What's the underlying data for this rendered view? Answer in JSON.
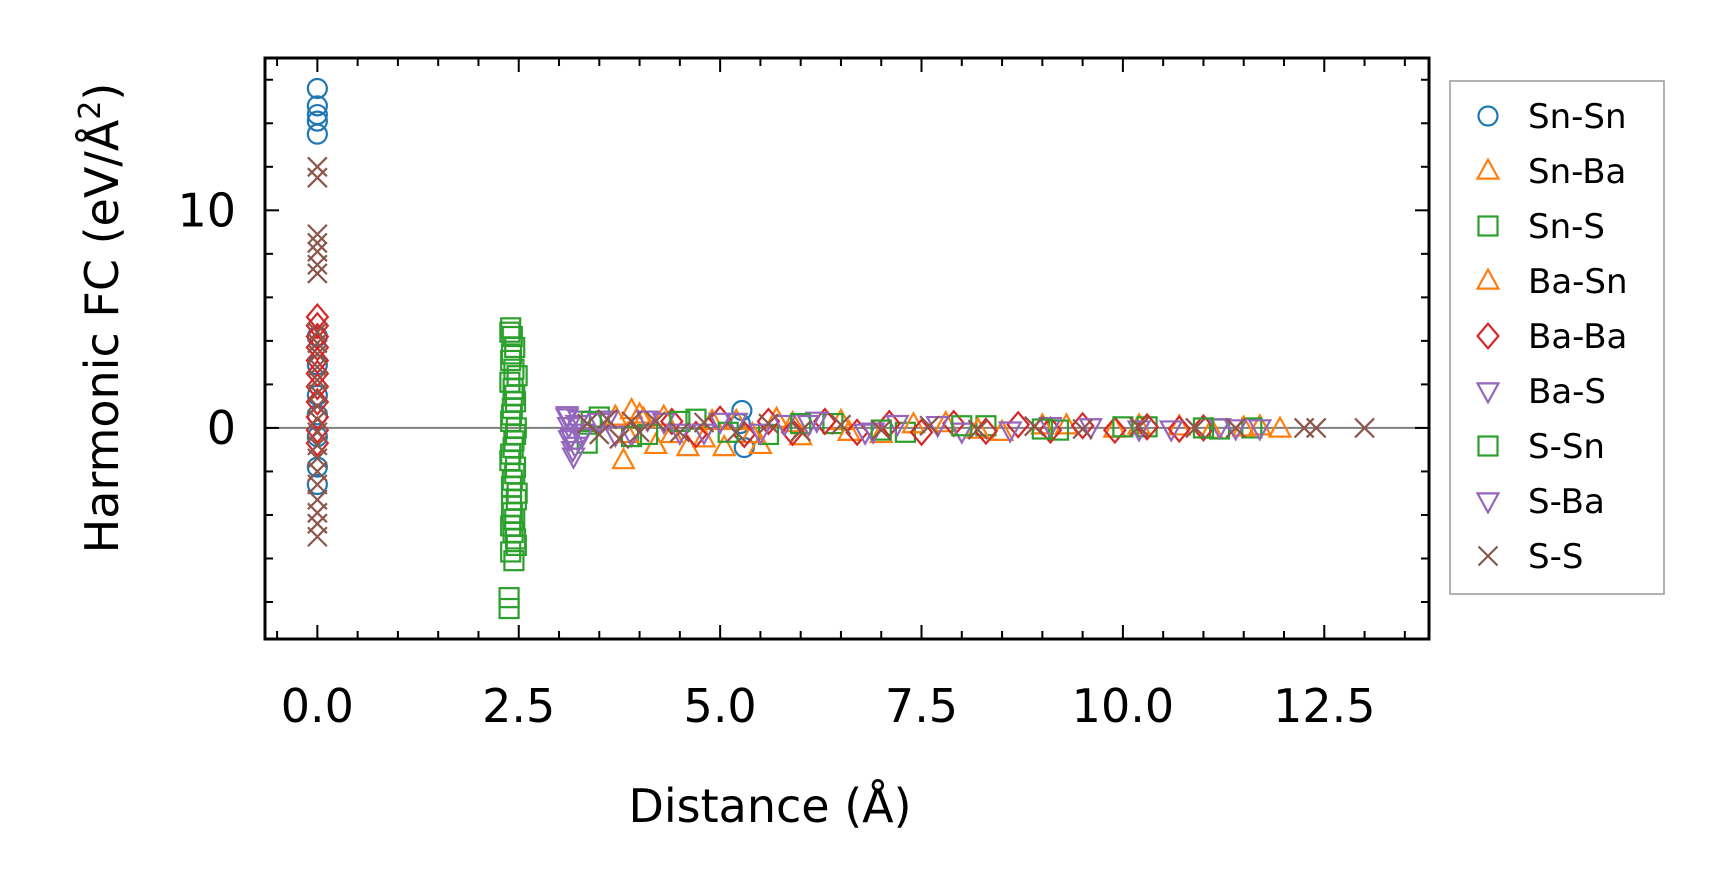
{
  "chart_data": {
    "type": "scatter",
    "title": "",
    "xlabel": "Distance (Å)",
    "ylabel_main": "Harmonic FC (eV/Å",
    "ylabel_sup": "2",
    "ylabel_end": ")",
    "xlim": [
      -0.65,
      13.8
    ],
    "ylim": [
      -9.7,
      17.0
    ],
    "xticks": [
      0.0,
      2.5,
      5.0,
      7.5,
      10.0,
      12.5
    ],
    "xtick_labels": [
      "0.0",
      "2.5",
      "5.0",
      "7.5",
      "10.0",
      "12.5"
    ],
    "yticks": [
      0,
      10
    ],
    "ytick_labels": [
      "0",
      "10"
    ],
    "x_minor_step": 0.5,
    "y_minor_step": 2,
    "zero_line": true,
    "grid": false,
    "legend_position": "outside-right",
    "series": [
      {
        "name": "Sn-Sn",
        "marker": "circle",
        "color": "#1f77b4",
        "points": [
          [
            0.0,
            15.6
          ],
          [
            0.0,
            14.8
          ],
          [
            0.0,
            14.4
          ],
          [
            0.0,
            14.1
          ],
          [
            0.0,
            13.5
          ],
          [
            0.0,
            4.2
          ],
          [
            0.0,
            2.9
          ],
          [
            0.0,
            1.5
          ],
          [
            0.0,
            0.6
          ],
          [
            0.0,
            -0.4
          ],
          [
            0.0,
            -1.8
          ],
          [
            0.0,
            -2.6
          ],
          [
            5.27,
            0.8
          ],
          [
            5.3,
            -0.9
          ],
          [
            5.25,
            0.2
          ]
        ]
      },
      {
        "name": "Sn-Ba",
        "marker": "triangle-up",
        "color": "#ff7f0e",
        "points": [
          [
            3.8,
            -1.5
          ],
          [
            3.9,
            0.8
          ],
          [
            4.0,
            0.6
          ],
          [
            4.2,
            -0.8
          ],
          [
            4.3,
            0.5
          ],
          [
            4.6,
            -0.9
          ],
          [
            4.8,
            -0.5
          ],
          [
            5.05,
            -0.9
          ],
          [
            5.2,
            0.3
          ],
          [
            5.5,
            -0.8
          ],
          [
            5.7,
            0.4
          ],
          [
            6.0,
            -0.4
          ],
          [
            6.5,
            0.3
          ],
          [
            7.0,
            -0.3
          ],
          [
            7.8,
            0.2
          ],
          [
            8.5,
            -0.2
          ],
          [
            9.3,
            0.1
          ],
          [
            10.2,
            0.1
          ],
          [
            11.1,
            -0.1
          ],
          [
            11.7,
            0.05
          ],
          [
            11.95,
            -0.05
          ]
        ]
      },
      {
        "name": "Sn-S",
        "marker": "square",
        "color": "#2ca02c",
        "points": [
          [
            2.4,
            4.6
          ],
          [
            2.42,
            4.2
          ],
          [
            2.45,
            3.7
          ],
          [
            2.4,
            3.1
          ],
          [
            2.48,
            2.4
          ],
          [
            2.43,
            1.8
          ],
          [
            2.46,
            1.2
          ],
          [
            2.41,
            0.6
          ],
          [
            2.47,
            0.0
          ],
          [
            2.44,
            -0.6
          ],
          [
            2.4,
            -1.2
          ],
          [
            2.46,
            -1.8
          ],
          [
            2.42,
            -2.4
          ],
          [
            2.48,
            -3.0
          ],
          [
            2.41,
            -3.6
          ],
          [
            2.45,
            -4.2
          ],
          [
            2.43,
            -4.8
          ],
          [
            2.47,
            -5.4
          ],
          [
            2.4,
            -5.7
          ],
          [
            2.44,
            -6.1
          ],
          [
            2.38,
            -7.8
          ],
          [
            2.38,
            -8.3
          ],
          [
            3.35,
            -0.7
          ],
          [
            3.5,
            0.5
          ],
          [
            4.1,
            -0.3
          ],
          [
            4.7,
            0.4
          ],
          [
            5.6,
            -0.3
          ],
          [
            6.4,
            0.2
          ],
          [
            7.3,
            -0.2
          ],
          [
            8.3,
            0.1
          ],
          [
            9.2,
            -0.1
          ],
          [
            10.3,
            0.05
          ],
          [
            11.2,
            -0.05
          ],
          [
            11.6,
            0.0
          ]
        ]
      },
      {
        "name": "Ba-Sn",
        "marker": "triangle-up",
        "color": "#ff7f0e",
        "points": [
          [
            3.7,
            0.5
          ],
          [
            3.85,
            -0.3
          ],
          [
            4.05,
            0.4
          ],
          [
            4.4,
            -0.3
          ],
          [
            4.9,
            0.3
          ],
          [
            5.4,
            -0.3
          ],
          [
            5.9,
            0.2
          ],
          [
            6.6,
            -0.2
          ],
          [
            7.4,
            0.15
          ],
          [
            8.2,
            -0.1
          ],
          [
            9.0,
            0.1
          ],
          [
            9.9,
            -0.05
          ],
          [
            10.7,
            0.05
          ],
          [
            11.5,
            0.0
          ]
        ]
      },
      {
        "name": "Ba-Ba",
        "marker": "diamond",
        "color": "#d62728",
        "points": [
          [
            0.0,
            5.1
          ],
          [
            0.0,
            4.7
          ],
          [
            0.0,
            4.2
          ],
          [
            0.0,
            3.7
          ],
          [
            0.0,
            3.1
          ],
          [
            0.0,
            2.5
          ],
          [
            0.0,
            1.9
          ],
          [
            0.0,
            1.2
          ],
          [
            0.0,
            0.5
          ],
          [
            0.0,
            -0.1
          ],
          [
            0.0,
            -0.7
          ],
          [
            4.4,
            0.3
          ],
          [
            4.7,
            -0.3
          ],
          [
            5.0,
            0.4
          ],
          [
            5.3,
            -0.3
          ],
          [
            5.6,
            0.3
          ],
          [
            5.9,
            -0.2
          ],
          [
            6.3,
            0.3
          ],
          [
            6.7,
            -0.2
          ],
          [
            7.1,
            0.2
          ],
          [
            7.5,
            -0.2
          ],
          [
            7.9,
            0.2
          ],
          [
            8.3,
            -0.15
          ],
          [
            8.7,
            0.15
          ],
          [
            9.1,
            -0.1
          ],
          [
            9.5,
            0.1
          ],
          [
            9.9,
            -0.1
          ],
          [
            10.3,
            0.05
          ],
          [
            10.7,
            -0.05
          ],
          [
            11.0,
            0.0
          ]
        ]
      },
      {
        "name": "Ba-S",
        "marker": "triangle-down",
        "color": "#9467bd",
        "points": [
          [
            3.1,
            0.6
          ],
          [
            3.12,
            0.1
          ],
          [
            3.15,
            -0.4
          ],
          [
            3.2,
            -0.8
          ],
          [
            3.18,
            -1.3
          ],
          [
            3.25,
            0.4
          ],
          [
            3.3,
            -0.2
          ],
          [
            3.6,
            0.4
          ],
          [
            3.9,
            -0.3
          ],
          [
            4.3,
            0.3
          ],
          [
            4.8,
            -0.2
          ],
          [
            5.2,
            0.3
          ],
          [
            5.8,
            0.2
          ],
          [
            6.2,
            0.35
          ],
          [
            6.8,
            -0.2
          ],
          [
            7.2,
            0.2
          ],
          [
            8.0,
            -0.15
          ],
          [
            9.1,
            0.1
          ],
          [
            10.2,
            -0.05
          ],
          [
            11.2,
            0.05
          ],
          [
            11.7,
            0.0
          ]
        ]
      },
      {
        "name": "S-Sn",
        "marker": "square",
        "color": "#2ca02c",
        "points": [
          [
            2.39,
            4.4
          ],
          [
            2.41,
            3.4
          ],
          [
            2.44,
            2.7
          ],
          [
            2.39,
            2.1
          ],
          [
            2.45,
            1.5
          ],
          [
            2.42,
            0.9
          ],
          [
            2.4,
            0.3
          ],
          [
            2.46,
            -0.3
          ],
          [
            2.43,
            -0.9
          ],
          [
            2.39,
            -1.5
          ],
          [
            2.45,
            -2.1
          ],
          [
            2.41,
            -2.7
          ],
          [
            2.47,
            -3.3
          ],
          [
            2.42,
            -3.9
          ],
          [
            2.4,
            -4.5
          ],
          [
            2.46,
            -5.1
          ],
          [
            3.4,
            0.3
          ],
          [
            3.9,
            -0.4
          ],
          [
            4.5,
            0.3
          ],
          [
            5.1,
            -0.2
          ],
          [
            6.0,
            0.2
          ],
          [
            7.0,
            -0.1
          ],
          [
            8.0,
            0.1
          ],
          [
            9.0,
            -0.05
          ],
          [
            10.0,
            0.05
          ],
          [
            11.0,
            0.0
          ]
        ]
      },
      {
        "name": "S-Ba",
        "marker": "triangle-down",
        "color": "#9467bd",
        "points": [
          [
            3.1,
            0.5
          ],
          [
            3.13,
            -0.5
          ],
          [
            3.17,
            -1.0
          ],
          [
            3.22,
            0.2
          ],
          [
            3.28,
            -0.4
          ],
          [
            3.5,
            0.3
          ],
          [
            3.7,
            -0.3
          ],
          [
            4.1,
            0.4
          ],
          [
            4.5,
            -0.2
          ],
          [
            5.0,
            0.3
          ],
          [
            5.5,
            -0.2
          ],
          [
            6.1,
            0.2
          ],
          [
            6.9,
            -0.15
          ],
          [
            7.7,
            0.15
          ],
          [
            8.6,
            -0.1
          ],
          [
            9.6,
            0.05
          ],
          [
            10.6,
            -0.05
          ],
          [
            11.4,
            0.0
          ]
        ]
      },
      {
        "name": "S-S",
        "marker": "x",
        "color": "#8c564b",
        "points": [
          [
            0.0,
            12.0
          ],
          [
            0.0,
            11.5
          ],
          [
            0.0,
            8.9
          ],
          [
            0.0,
            8.5
          ],
          [
            0.0,
            8.1
          ],
          [
            0.0,
            7.5
          ],
          [
            0.0,
            7.1
          ],
          [
            0.0,
            4.4
          ],
          [
            0.0,
            3.9
          ],
          [
            0.0,
            3.4
          ],
          [
            0.0,
            2.8
          ],
          [
            0.0,
            2.2
          ],
          [
            0.0,
            1.6
          ],
          [
            0.0,
            1.0
          ],
          [
            0.0,
            0.4
          ],
          [
            0.0,
            -0.2
          ],
          [
            0.0,
            -0.8
          ],
          [
            0.0,
            -1.4
          ],
          [
            0.0,
            -2.0
          ],
          [
            0.0,
            -2.6
          ],
          [
            0.0,
            -3.3
          ],
          [
            0.0,
            -3.9
          ],
          [
            0.0,
            -4.4
          ],
          [
            0.0,
            -5.0
          ],
          [
            3.35,
            0.2
          ],
          [
            3.5,
            -0.3
          ],
          [
            3.6,
            0.4
          ],
          [
            3.75,
            -0.5
          ],
          [
            3.9,
            0.3
          ],
          [
            4.0,
            -0.2
          ],
          [
            4.2,
            0.3
          ],
          [
            4.5,
            -0.2
          ],
          [
            4.8,
            0.25
          ],
          [
            5.2,
            -0.2
          ],
          [
            5.6,
            0.2
          ],
          [
            6.0,
            -0.15
          ],
          [
            6.5,
            0.15
          ],
          [
            7.0,
            -0.1
          ],
          [
            7.6,
            0.1
          ],
          [
            8.2,
            -0.08
          ],
          [
            8.9,
            0.08
          ],
          [
            9.5,
            -0.05
          ],
          [
            10.2,
            0.05
          ],
          [
            10.9,
            0.0
          ],
          [
            11.4,
            0.0
          ],
          [
            12.25,
            0.0
          ],
          [
            12.4,
            0.0
          ],
          [
            13.0,
            0.0
          ]
        ]
      }
    ]
  }
}
